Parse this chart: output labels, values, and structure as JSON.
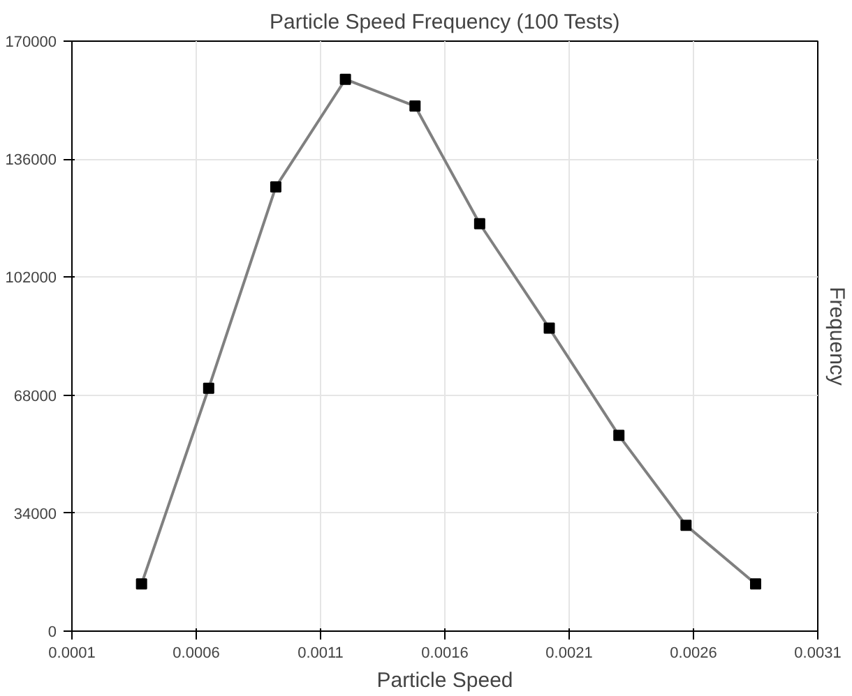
{
  "chart_data": {
    "type": "line",
    "title": "Particle Speed Frequency (100 Tests)",
    "xlabel": "Particle Speed",
    "ylabel": "Frequency",
    "x": [
      0.00038,
      0.00065,
      0.00092,
      0.0012,
      0.00148,
      0.00174,
      0.00202,
      0.0023,
      0.00257,
      0.00285
    ],
    "series": [
      {
        "color": "#808080",
        "values": [
          13600,
          70000,
          128000,
          159000,
          151300,
          117400,
          87300,
          56400,
          30500,
          13600
        ]
      }
    ],
    "xlim": [
      0.0001,
      0.0031
    ],
    "xticks": [
      0.0001,
      0.0006,
      0.0011,
      0.0016,
      0.0021,
      0.0026,
      0.0031
    ],
    "ylim": [
      0,
      170000
    ],
    "yticks": [
      0,
      34000,
      68000,
      102000,
      136000,
      170000
    ],
    "grid": true,
    "marker": "square",
    "line_style": "solid"
  }
}
